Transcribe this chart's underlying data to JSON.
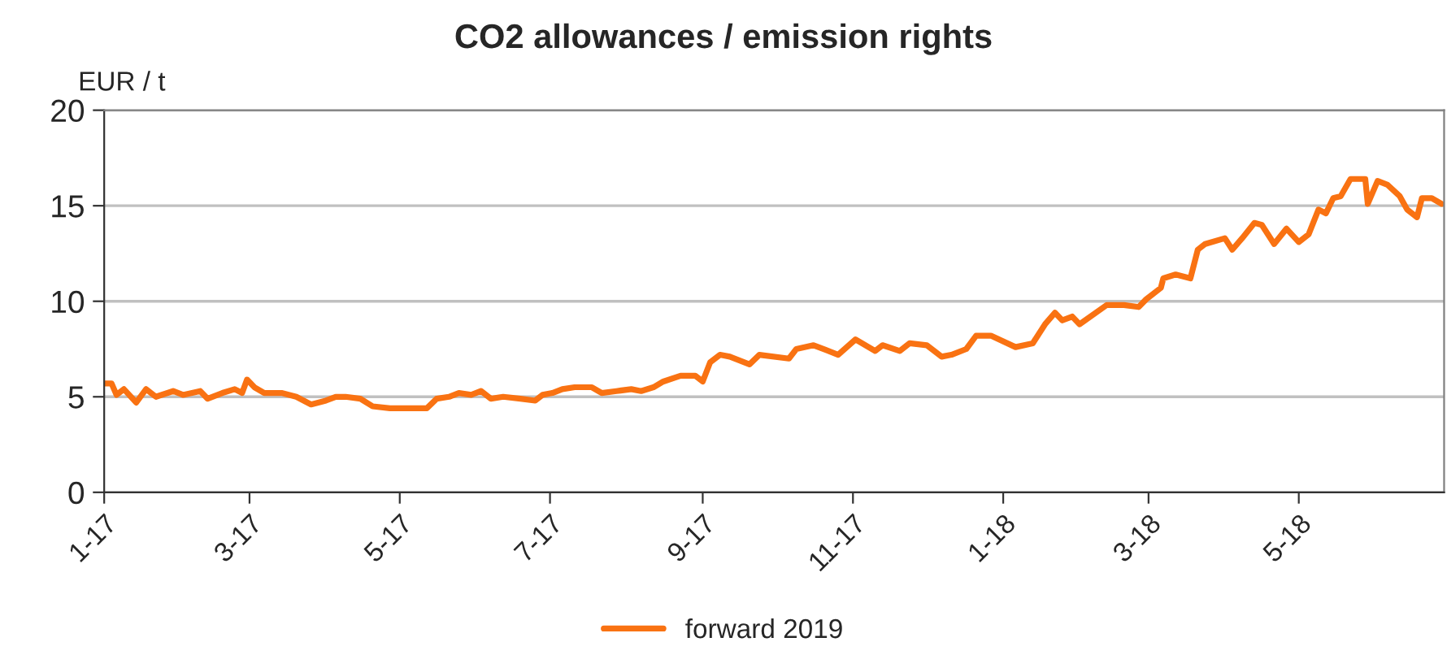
{
  "chart_data": {
    "type": "line",
    "title": "CO2 allowances / emission rights",
    "ylabel": "EUR / t",
    "x": [
      "2017-01-01",
      "2017-01-04",
      "2017-01-06",
      "2017-01-09",
      "2017-01-14",
      "2017-01-18",
      "2017-01-22",
      "2017-01-29",
      "2017-02-02",
      "2017-02-09",
      "2017-02-12",
      "2017-02-18",
      "2017-02-23",
      "2017-02-26",
      "2017-02-28",
      "2017-03-03",
      "2017-03-07",
      "2017-03-14",
      "2017-03-20",
      "2017-03-26",
      "2017-04-01",
      "2017-04-05",
      "2017-04-09",
      "2017-04-15",
      "2017-04-20",
      "2017-04-27",
      "2017-05-05",
      "2017-05-12",
      "2017-05-16",
      "2017-05-21",
      "2017-05-25",
      "2017-05-30",
      "2017-06-03",
      "2017-06-07",
      "2017-06-12",
      "2017-06-19",
      "2017-06-25",
      "2017-06-28",
      "2017-07-02",
      "2017-07-06",
      "2017-07-11",
      "2017-07-18",
      "2017-07-22",
      "2017-07-28",
      "2017-08-03",
      "2017-08-07",
      "2017-08-12",
      "2017-08-16",
      "2017-08-23",
      "2017-08-29",
      "2017-09-01",
      "2017-09-04",
      "2017-09-08",
      "2017-09-12",
      "2017-09-20",
      "2017-09-24",
      "2017-10-06",
      "2017-10-09",
      "2017-10-16",
      "2017-10-26",
      "2017-11-02",
      "2017-11-10",
      "2017-11-13",
      "2017-11-20",
      "2017-11-24",
      "2017-12-01",
      "2017-12-07",
      "2017-12-11",
      "2017-12-17",
      "2017-12-21",
      "2017-12-27",
      "2018-01-06",
      "2018-01-13",
      "2018-01-18",
      "2018-01-22",
      "2018-01-25",
      "2018-01-29",
      "2018-02-01",
      "2018-02-12",
      "2018-02-19",
      "2018-02-25",
      "2018-02-28",
      "2018-03-06",
      "2018-03-07",
      "2018-03-12",
      "2018-03-18",
      "2018-03-21",
      "2018-03-24",
      "2018-04-01",
      "2018-04-04",
      "2018-04-08",
      "2018-04-13",
      "2018-04-16",
      "2018-04-21",
      "2018-04-26",
      "2018-05-01",
      "2018-05-05",
      "2018-05-09",
      "2018-05-12",
      "2018-05-15",
      "2018-05-18",
      "2018-05-22",
      "2018-05-28",
      "2018-05-29",
      "2018-06-02",
      "2018-06-06",
      "2018-06-11",
      "2018-06-14",
      "2018-06-18",
      "2018-06-20",
      "2018-06-24",
      "2018-06-28"
    ],
    "series": [
      {
        "name": "forward 2019",
        "color": "#f97212",
        "values": [
          5.7,
          5.7,
          5.1,
          5.4,
          4.7,
          5.4,
          5.0,
          5.3,
          5.1,
          5.3,
          4.9,
          5.2,
          5.4,
          5.2,
          5.9,
          5.5,
          5.2,
          5.2,
          5.0,
          4.6,
          4.8,
          5.0,
          5.0,
          4.9,
          4.5,
          4.4,
          4.4,
          4.4,
          4.9,
          5.0,
          5.2,
          5.1,
          5.3,
          4.9,
          5.0,
          4.9,
          4.8,
          5.1,
          5.2,
          5.4,
          5.5,
          5.5,
          5.2,
          5.3,
          5.4,
          5.3,
          5.5,
          5.8,
          6.1,
          6.1,
          5.8,
          6.8,
          7.2,
          7.1,
          6.7,
          7.2,
          7.0,
          7.5,
          7.7,
          7.2,
          8.0,
          7.4,
          7.7,
          7.4,
          7.8,
          7.7,
          7.1,
          7.2,
          7.5,
          8.2,
          8.2,
          7.6,
          7.8,
          8.8,
          9.4,
          9.0,
          9.2,
          8.8,
          9.8,
          9.8,
          9.7,
          10.1,
          10.7,
          11.2,
          11.4,
          11.2,
          12.7,
          13.0,
          13.3,
          12.7,
          13.3,
          14.1,
          14.0,
          13.0,
          13.8,
          13.1,
          13.5,
          14.8,
          14.6,
          15.4,
          15.5,
          16.4,
          16.4,
          15.1,
          16.3,
          16.1,
          15.5,
          14.8,
          14.4,
          15.4,
          15.4,
          15.1
        ]
      }
    ],
    "xlim": [
      "2017-01-01",
      "2018-06-29"
    ],
    "xticks": [
      {
        "value": "2017-01-01",
        "label": "1-17"
      },
      {
        "value": "2017-03-01",
        "label": "3-17"
      },
      {
        "value": "2017-05-01",
        "label": "5-17"
      },
      {
        "value": "2017-07-01",
        "label": "7-17"
      },
      {
        "value": "2017-09-01",
        "label": "9-17"
      },
      {
        "value": "2017-11-01",
        "label": "11-17"
      },
      {
        "value": "2018-01-01",
        "label": "1-18"
      },
      {
        "value": "2018-03-01",
        "label": "3-18"
      },
      {
        "value": "2018-05-01",
        "label": "5-18"
      }
    ],
    "ylim": [
      0,
      20
    ],
    "yticks": [
      0,
      5,
      10,
      15,
      20
    ],
    "grid": "y",
    "legend": "bottom",
    "marker": "none",
    "line_style": "solid"
  }
}
